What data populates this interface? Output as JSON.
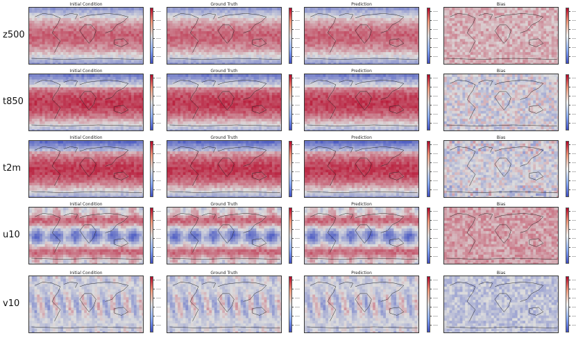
{
  "colormap": {
    "low": "#3b4cc0",
    "mid": "#dddddd",
    "high": "#b40426"
  },
  "column_titles": [
    "Initial Condition",
    "Ground Truth",
    "Prediction",
    "Bias"
  ],
  "row_labels": [
    "z500",
    "t850",
    "t2m",
    "u10",
    "v10"
  ],
  "chart_data": {
    "type": "heatmap",
    "layout": "grid of global lat-lon maps (5 variables x 4 panels), each with its own colorbar",
    "rows": [
      {
        "variable": "z500",
        "initial_condition": "zonal bands, high in tropics, low at poles",
        "ground_truth": "same pattern",
        "prediction": "same pattern",
        "bias": "mostly small positive (light red)"
      },
      {
        "variable": "t850",
        "initial_condition": "warm tropics, cold poles",
        "ground_truth": "same pattern",
        "prediction": "same pattern",
        "bias": "small, mixed blue/red noise"
      },
      {
        "variable": "t2m",
        "initial_condition": "warm tropics, cold poles",
        "ground_truth": "same pattern",
        "prediction": "same pattern",
        "bias": "small, mixed with stronger values over land"
      },
      {
        "variable": "u10",
        "initial_condition": "easterly trades (blue) and westerly belts (red)",
        "ground_truth": "same pattern",
        "prediction": "same pattern",
        "bias": "mostly small positive (light red)"
      },
      {
        "variable": "v10",
        "initial_condition": "mixed meridional wind patches",
        "ground_truth": "same pattern",
        "prediction": "same pattern",
        "bias": "small, mostly light blue"
      }
    ]
  }
}
